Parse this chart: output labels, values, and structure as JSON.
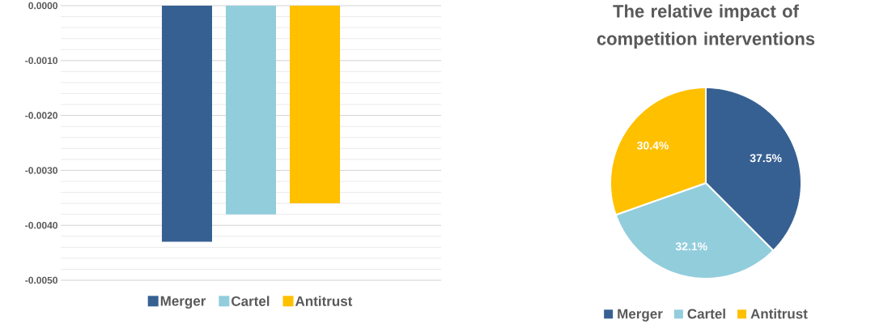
{
  "chart_data": [
    {
      "type": "bar",
      "categories": [
        null
      ],
      "series": [
        {
          "name": "Merger",
          "color": "#376092",
          "values": [
            -0.0043
          ]
        },
        {
          "name": "Cartel",
          "color": "#92cddc",
          "values": [
            -0.0038
          ]
        },
        {
          "name": "Antitrust",
          "color": "#ffc000",
          "values": [
            -0.0036
          ]
        }
      ],
      "ylim": [
        -0.005,
        0
      ],
      "yticks": [
        {
          "value": 0,
          "label": "0.0000"
        },
        {
          "value": -0.0002,
          "label": null
        },
        {
          "value": -0.0004,
          "label": null
        },
        {
          "value": -0.0006,
          "label": null
        },
        {
          "value": -0.0008,
          "label": null
        },
        {
          "value": -0.001,
          "label": "-0.0010"
        },
        {
          "value": -0.0012,
          "label": null
        },
        {
          "value": -0.0014,
          "label": null
        },
        {
          "value": -0.0016,
          "label": null
        },
        {
          "value": -0.0018,
          "label": null
        },
        {
          "value": -0.002,
          "label": "-0.0020"
        },
        {
          "value": -0.0022,
          "label": null
        },
        {
          "value": -0.0024,
          "label": null
        },
        {
          "value": -0.0026,
          "label": null
        },
        {
          "value": -0.0028,
          "label": null
        },
        {
          "value": -0.003,
          "label": "-0.0030"
        },
        {
          "value": -0.0032,
          "label": null
        },
        {
          "value": -0.0034,
          "label": null
        },
        {
          "value": -0.0036,
          "label": null
        },
        {
          "value": -0.0038,
          "label": null
        },
        {
          "value": -0.004,
          "label": "-0.0040"
        },
        {
          "value": -0.0042,
          "label": null
        },
        {
          "value": -0.0044,
          "label": null
        },
        {
          "value": -0.0046,
          "label": null
        },
        {
          "value": -0.0048,
          "label": null
        },
        {
          "value": -0.005,
          "label": "-0.0050"
        }
      ],
      "grid": "y",
      "legend": "bottom"
    },
    {
      "type": "pie",
      "title": "The relative impact of competition interventions",
      "categories": [
        "Merger",
        "Cartel",
        "Antitrust"
      ],
      "values": [
        37.5,
        32.1,
        30.4
      ],
      "value_labels": [
        "37.5%",
        "32.1%",
        "30.4%"
      ],
      "colors": [
        "#376092",
        "#92cddc",
        "#ffc000"
      ],
      "legend": "bottom"
    }
  ]
}
